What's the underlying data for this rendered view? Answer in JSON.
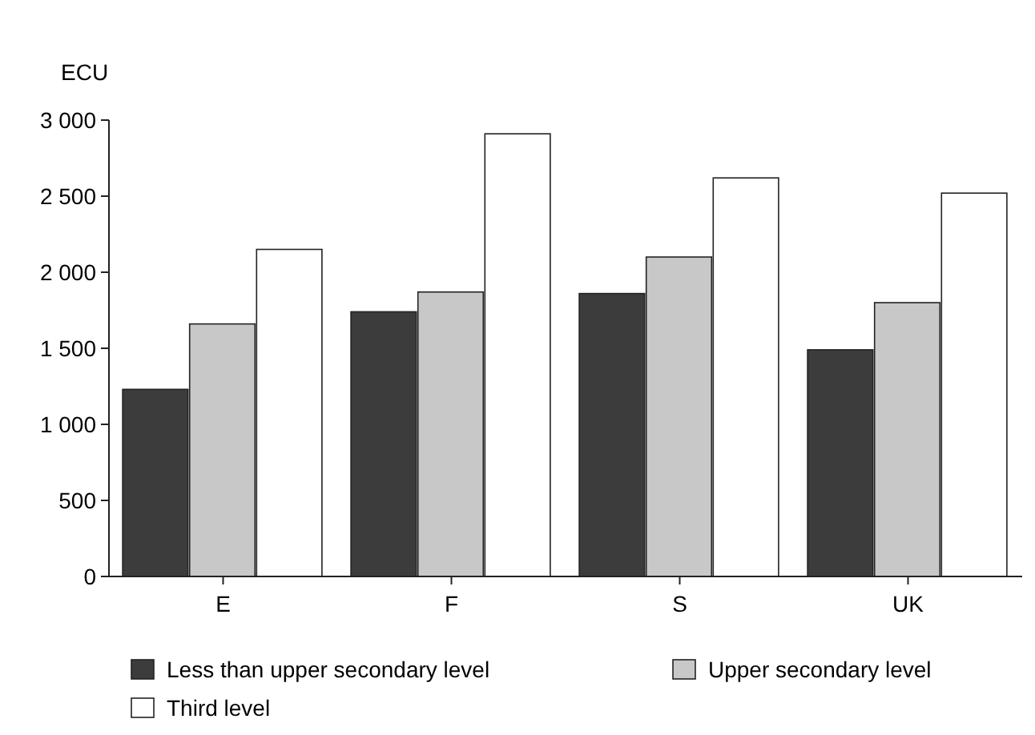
{
  "chart_data": {
    "type": "bar",
    "ylabel": "ECU",
    "categories": [
      "E",
      "F",
      "S",
      "UK"
    ],
    "series": [
      {
        "name": "Less than upper secondary level",
        "color": "#3c3c3c",
        "values": [
          1230,
          1740,
          1860,
          1490
        ]
      },
      {
        "name": "Upper secondary level",
        "color": "#c8c8c8",
        "values": [
          1660,
          1870,
          2100,
          1800
        ]
      },
      {
        "name": "Third level",
        "color": "#ffffff",
        "values": [
          2150,
          2910,
          2620,
          2520
        ]
      }
    ],
    "ylim": [
      0,
      3000
    ],
    "yticks": [
      0,
      500,
      {
        "value": 1000,
        "label": "1 000"
      },
      {
        "value": 1500,
        "label": "1 500"
      },
      {
        "value": 2000,
        "label": "2 000"
      },
      {
        "value": 2500,
        "label": "2 500"
      },
      {
        "value": 3000,
        "label": "3 000"
      }
    ],
    "grid": false,
    "legend": "bottom"
  }
}
